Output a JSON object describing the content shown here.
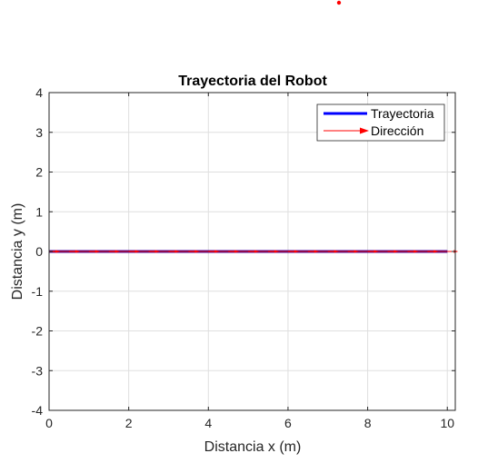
{
  "chart_data": {
    "type": "line",
    "title": "Trayectoria del Robot",
    "xlabel": "Distancia x (m)",
    "ylabel": "Distancia y (m)",
    "xlim": [
      0,
      10.2
    ],
    "ylim": [
      -4,
      4
    ],
    "x_ticks": [
      0,
      2,
      4,
      6,
      8,
      10
    ],
    "y_ticks": [
      -4,
      -3,
      -2,
      -1,
      0,
      1,
      2,
      3,
      4
    ],
    "x_tick_labels": [
      "0",
      "2",
      "4",
      "6",
      "8",
      "10"
    ],
    "y_tick_labels": [
      "-4",
      "-3",
      "-2",
      "-1",
      "0",
      "1",
      "2",
      "3",
      "4"
    ],
    "grid": true,
    "legend_position": "top-right",
    "series": [
      {
        "name": "Trayectoria",
        "kind": "line",
        "color": "#0000ff",
        "x": [
          0,
          10
        ],
        "y": [
          0,
          0
        ]
      },
      {
        "name": "Dirección",
        "kind": "quiver",
        "color": "#ff0000",
        "x": [
          0,
          0.5,
          1,
          1.5,
          2,
          2.5,
          3,
          3.5,
          4,
          4.5,
          5,
          5.5,
          6,
          6.5,
          7,
          7.5,
          8,
          8.5,
          9,
          9.5,
          10
        ],
        "y": [
          0,
          0,
          0,
          0,
          0,
          0,
          0,
          0,
          0,
          0,
          0,
          0,
          0,
          0,
          0,
          0,
          0,
          0,
          0,
          0,
          0
        ]
      }
    ]
  },
  "colors": {
    "trajectory": "#0000ff",
    "direction": "#ff0000",
    "overlap": "#8b0a50",
    "axis": "#262626",
    "grid": "#dfdfdf"
  }
}
